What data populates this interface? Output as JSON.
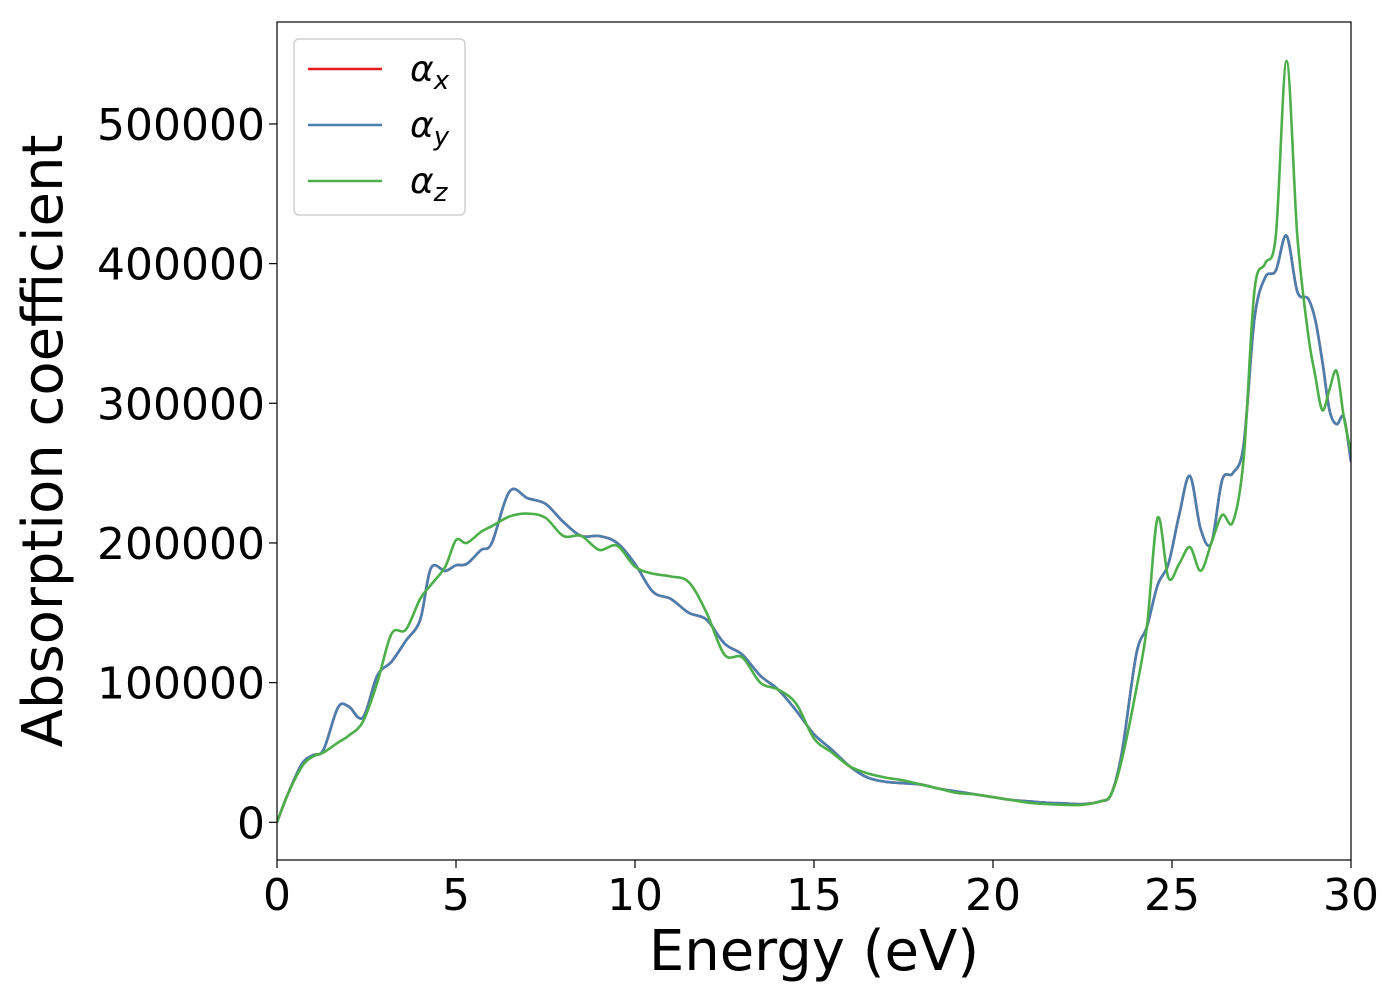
{
  "chart_data": {
    "type": "line",
    "xlabel": "Energy (eV)",
    "ylabel": "Absorption coefficient",
    "xlim": [
      0,
      30
    ],
    "ylim": [
      -27000,
      573000
    ],
    "x_ticks": [
      0,
      5,
      10,
      15,
      20,
      25,
      30
    ],
    "y_ticks": [
      0,
      100000,
      200000,
      300000,
      400000,
      500000
    ],
    "x_tick_labels": [
      "0",
      "5",
      "10",
      "15",
      "20",
      "25",
      "30"
    ],
    "y_tick_labels": [
      "0",
      "100000",
      "200000",
      "300000",
      "400000",
      "500000"
    ],
    "grid": false,
    "legend_position": "top-left",
    "series": [
      {
        "name": "α",
        "subscript": "x",
        "color": "#e41a1c",
        "x": [
          0,
          0.3,
          0.7,
          1.0,
          1.3,
          1.7,
          2.0,
          2.4,
          2.8,
          3.2,
          3.6,
          4.0,
          4.3,
          4.7,
          5.0,
          5.3,
          5.7,
          6.0,
          6.5,
          7.0,
          7.5,
          8.0,
          8.5,
          9.0,
          9.5,
          10.0,
          10.5,
          11.0,
          11.5,
          12.0,
          12.5,
          13.0,
          13.5,
          14.0,
          14.5,
          15.0,
          15.5,
          16.0,
          16.5,
          17.0,
          17.5,
          18.0,
          18.5,
          19.0,
          19.5,
          20.0,
          20.5,
          21.0,
          21.5,
          22.0,
          22.5,
          23.0,
          23.3,
          23.6,
          24.0,
          24.3,
          24.6,
          24.9,
          25.2,
          25.5,
          25.8,
          26.1,
          26.4,
          26.7,
          27.0,
          27.3,
          27.6,
          27.9,
          28.2,
          28.5,
          28.8,
          29.0,
          29.2,
          29.4,
          29.6,
          29.8,
          30.0
        ],
        "y": [
          0,
          20000,
          42000,
          48000,
          52000,
          82000,
          83000,
          75000,
          105000,
          115000,
          130000,
          145000,
          182000,
          180000,
          184000,
          185000,
          195000,
          200000,
          237000,
          232000,
          228000,
          215000,
          205000,
          205000,
          200000,
          185000,
          165000,
          160000,
          150000,
          145000,
          128000,
          120000,
          105000,
          95000,
          80000,
          63000,
          52000,
          40000,
          32000,
          29000,
          28000,
          27000,
          24000,
          22000,
          20000,
          18000,
          16000,
          15000,
          14000,
          13500,
          13000,
          15000,
          20000,
          50000,
          120000,
          140000,
          170000,
          185000,
          220000,
          248000,
          210000,
          200000,
          245000,
          250000,
          270000,
          360000,
          390000,
          395000,
          420000,
          380000,
          375000,
          360000,
          330000,
          295000,
          285000,
          290000,
          258000
        ]
      },
      {
        "name": "α",
        "subscript": "y",
        "color": "#4a7fb0",
        "x": [
          0,
          0.3,
          0.7,
          1.0,
          1.3,
          1.7,
          2.0,
          2.4,
          2.8,
          3.2,
          3.6,
          4.0,
          4.3,
          4.7,
          5.0,
          5.3,
          5.7,
          6.0,
          6.5,
          7.0,
          7.5,
          8.0,
          8.5,
          9.0,
          9.5,
          10.0,
          10.5,
          11.0,
          11.5,
          12.0,
          12.5,
          13.0,
          13.5,
          14.0,
          14.5,
          15.0,
          15.5,
          16.0,
          16.5,
          17.0,
          17.5,
          18.0,
          18.5,
          19.0,
          19.5,
          20.0,
          20.5,
          21.0,
          21.5,
          22.0,
          22.5,
          23.0,
          23.3,
          23.6,
          24.0,
          24.3,
          24.6,
          24.9,
          25.2,
          25.5,
          25.8,
          26.1,
          26.4,
          26.7,
          27.0,
          27.3,
          27.6,
          27.9,
          28.2,
          28.5,
          28.8,
          29.0,
          29.2,
          29.4,
          29.6,
          29.8,
          30.0
        ],
        "y": [
          0,
          20000,
          42000,
          48000,
          52000,
          82000,
          83000,
          75000,
          105000,
          115000,
          130000,
          145000,
          182000,
          180000,
          184000,
          185000,
          195000,
          200000,
          237000,
          232000,
          228000,
          215000,
          205000,
          205000,
          200000,
          185000,
          165000,
          160000,
          150000,
          145000,
          128000,
          120000,
          105000,
          95000,
          80000,
          63000,
          52000,
          40000,
          32000,
          29000,
          28000,
          27000,
          24000,
          22000,
          20000,
          18000,
          16000,
          15000,
          14000,
          13500,
          13000,
          15000,
          20000,
          50000,
          120000,
          140000,
          170000,
          185000,
          220000,
          248000,
          210000,
          200000,
          245000,
          250000,
          270000,
          360000,
          390000,
          395000,
          420000,
          380000,
          375000,
          360000,
          330000,
          295000,
          285000,
          290000,
          258000
        ]
      },
      {
        "name": "α",
        "subscript": "z",
        "color": "#4daf4a",
        "x": [
          0,
          0.3,
          0.7,
          1.0,
          1.3,
          1.7,
          2.0,
          2.4,
          2.8,
          3.2,
          3.6,
          4.0,
          4.3,
          4.7,
          5.0,
          5.3,
          5.7,
          6.0,
          6.5,
          7.0,
          7.5,
          8.0,
          8.5,
          9.0,
          9.5,
          10.0,
          10.5,
          11.0,
          11.5,
          12.0,
          12.5,
          13.0,
          13.5,
          14.0,
          14.5,
          15.0,
          15.5,
          16.0,
          16.5,
          17.0,
          17.5,
          18.0,
          18.5,
          19.0,
          19.5,
          20.0,
          20.5,
          21.0,
          21.5,
          22.0,
          22.5,
          23.0,
          23.3,
          23.6,
          24.0,
          24.3,
          24.6,
          24.9,
          25.2,
          25.5,
          25.8,
          26.1,
          26.4,
          26.7,
          27.0,
          27.3,
          27.6,
          27.9,
          28.2,
          28.5,
          28.8,
          29.0,
          29.2,
          29.4,
          29.6,
          29.8,
          30.0
        ],
        "y": [
          0,
          20000,
          40000,
          47000,
          50000,
          57000,
          62000,
          72000,
          100000,
          135000,
          138000,
          160000,
          170000,
          183000,
          202000,
          200000,
          208000,
          212000,
          219000,
          221000,
          218000,
          205000,
          205000,
          195000,
          198000,
          183000,
          178000,
          176000,
          172000,
          150000,
          120000,
          118000,
          100000,
          95000,
          85000,
          60000,
          50000,
          40000,
          35000,
          32000,
          30000,
          27000,
          24000,
          21000,
          20000,
          18000,
          16000,
          14000,
          13000,
          12500,
          12500,
          15000,
          20000,
          45000,
          95000,
          140000,
          218000,
          175000,
          185000,
          197000,
          180000,
          200000,
          220000,
          215000,
          260000,
          380000,
          400000,
          420000,
          545000,
          420000,
          350000,
          320000,
          295000,
          310000,
          323000,
          290000,
          265000
        ]
      }
    ]
  }
}
